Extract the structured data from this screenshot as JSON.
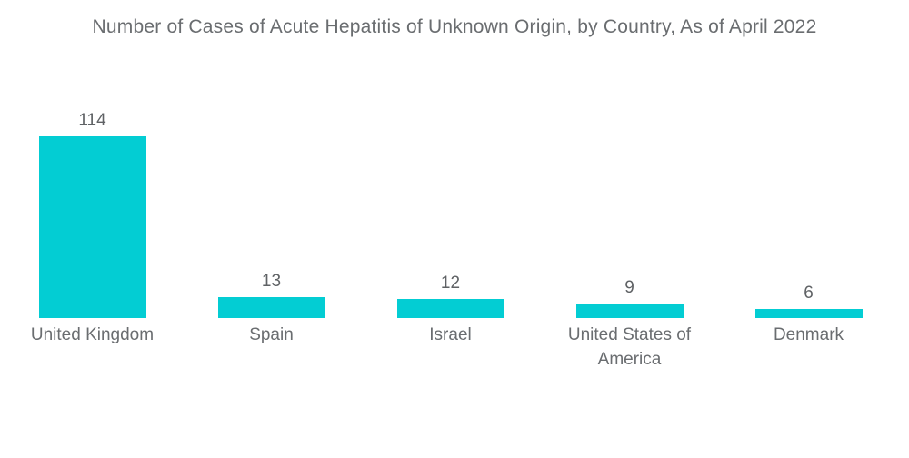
{
  "title": "Number of Cases of Acute Hepatitis of Unknown Origin, by Country, As of April 2022",
  "colors": {
    "bar_fill": "#03cdd3",
    "title_text": "#6a6d70",
    "label_text": "#6a6d70",
    "value_text": "#5f6265",
    "background": "#ffffff"
  },
  "chart_data": {
    "type": "bar",
    "title": "Number of Cases of Acute Hepatitis of Unknown Origin, by Country, As of April 2022",
    "categories": [
      "United Kingdom",
      "Spain",
      "Israel",
      "United States of America",
      "Denmark"
    ],
    "values": [
      114,
      13,
      12,
      9,
      6
    ],
    "value_labels": [
      "114",
      "13",
      "12",
      "9",
      "6"
    ],
    "xlabel": "",
    "ylabel": "",
    "ylim": [
      0,
      114
    ],
    "grid": false,
    "legend": false,
    "axes_visible": false,
    "bar_orientation": "vertical",
    "value_label_position": "above-bar"
  }
}
